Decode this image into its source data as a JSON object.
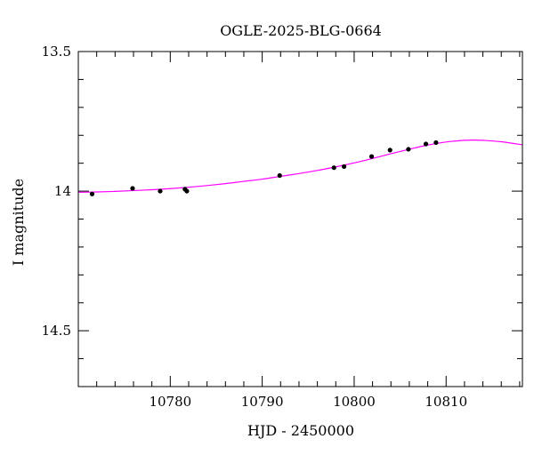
{
  "chart_data": {
    "type": "scatter",
    "title": "OGLE-2025-BLG-0664",
    "xlabel": "HJD - 2450000",
    "ylabel": "I magnitude",
    "xlim": [
      10770.0,
      10818.3
    ],
    "ylim": [
      13.5,
      14.7
    ],
    "y_inverted": true,
    "x_ticks": [
      10780,
      10790,
      10800,
      10810
    ],
    "x_tick_labels": [
      "10780",
      "10790",
      "10800",
      "10810"
    ],
    "x_minor_step": 2,
    "y_ticks": [
      13.5,
      14.0,
      14.5
    ],
    "y_tick_labels": [
      "13.5",
      "14",
      "14.5"
    ],
    "y_minor_step": 0.1,
    "grid": false,
    "colors": {
      "points": "#000000",
      "model": "#ff00ff",
      "axes": "#000000"
    },
    "series": [
      {
        "type": "scatter",
        "x": [
          10771.5,
          10775.9,
          10778.9,
          10781.6,
          10781.8,
          10791.9,
          10797.8,
          10798.9,
          10801.9,
          10803.9,
          10805.9,
          10807.8,
          10808.9
        ],
        "y": [
          14.01,
          13.99,
          14.0,
          13.993,
          14.0,
          13.944,
          13.916,
          13.912,
          13.876,
          13.853,
          13.85,
          13.831,
          13.826
        ]
      },
      {
        "type": "line",
        "x": [
          10770,
          10772,
          10774,
          10776,
          10778,
          10780,
          10782,
          10784,
          10786,
          10788,
          10790,
          10792,
          10794,
          10796,
          10798,
          10800,
          10802,
          10804,
          10806,
          10808,
          10810,
          10812,
          10813,
          10814,
          10816,
          10818.3
        ],
        "y": [
          14.004,
          14.003,
          14.001,
          13.998,
          13.995,
          13.991,
          13.986,
          13.98,
          13.973,
          13.965,
          13.957,
          13.947,
          13.937,
          13.926,
          13.913,
          13.899,
          13.883,
          13.866,
          13.85,
          13.835,
          13.824,
          13.818,
          13.817,
          13.818,
          13.823,
          13.834
        ]
      }
    ]
  }
}
